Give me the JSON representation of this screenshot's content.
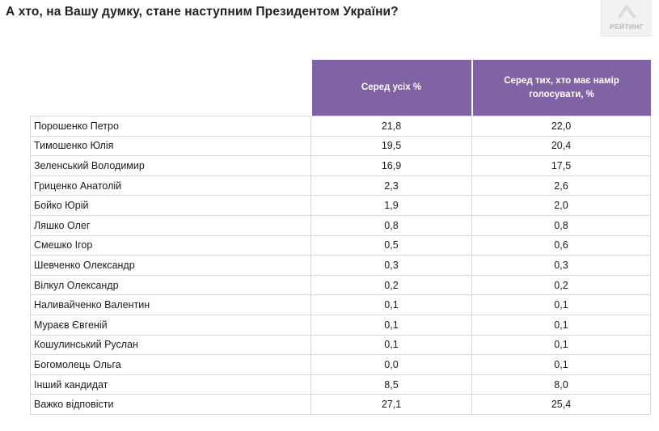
{
  "title": "А хто, на Вашу думку, стане наступним Президентом України?",
  "logo": {
    "text": "РЕЙТИНГ"
  },
  "colors": {
    "header_bg": "#8063a4",
    "header_text": "#ffffff",
    "grid": "#d9d9d9"
  },
  "chart_data": {
    "type": "table",
    "title": "А хто, на Вашу думку, стане наступним Президентом України?",
    "columns": [
      "Серед усіх %",
      "Серед тих, хто має намір голосувати, %"
    ],
    "rows": [
      {
        "name": "Порошенко Петро",
        "all": "21,8",
        "voters": "22,0"
      },
      {
        "name": "Тимошенко Юлія",
        "all": "19,5",
        "voters": "20,4"
      },
      {
        "name": "Зеленський Володимир",
        "all": "16,9",
        "voters": "17,5"
      },
      {
        "name": "Гриценко Анатолій",
        "all": "2,3",
        "voters": "2,6"
      },
      {
        "name": "Бойко Юрій",
        "all": "1,9",
        "voters": "2,0"
      },
      {
        "name": "Ляшко Олег",
        "all": "0,8",
        "voters": "0,8"
      },
      {
        "name": "Смешко Ігор",
        "all": "0,5",
        "voters": "0,6"
      },
      {
        "name": "Шевченко Олександр",
        "all": "0,3",
        "voters": "0,3"
      },
      {
        "name": "Вілкул Олександр",
        "all": "0,2",
        "voters": "0,2"
      },
      {
        "name": "Наливайченко Валентин",
        "all": "0,1",
        "voters": "0,1"
      },
      {
        "name": "Мураєв Євгеній",
        "all": "0,1",
        "voters": "0,1"
      },
      {
        "name": "Кошулинський Руслан",
        "all": "0,1",
        "voters": "0,1"
      },
      {
        "name": "Богомолець Ольга",
        "all": "0,0",
        "voters": "0,1"
      },
      {
        "name": "Інший кандидат",
        "all": "8,5",
        "voters": "8,0"
      },
      {
        "name": "Важко відповісти",
        "all": "27,1",
        "voters": "25,4"
      }
    ]
  }
}
